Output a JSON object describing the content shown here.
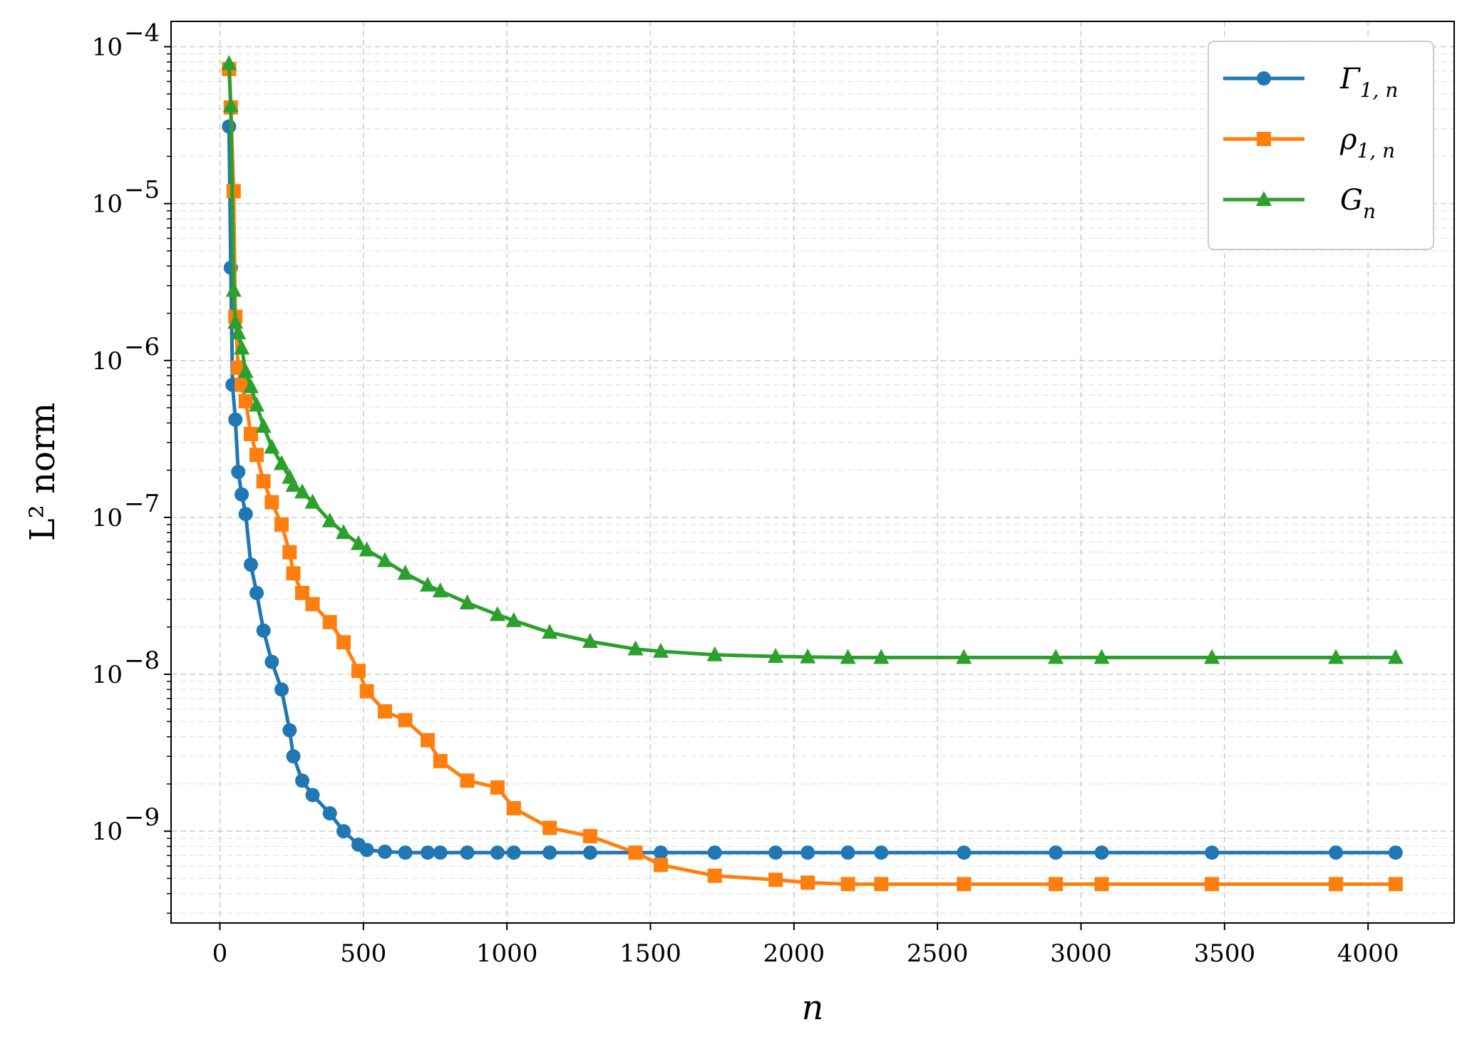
{
  "chart_data": {
    "type": "line",
    "xlabel": "n",
    "ylabel": "L² norm",
    "yscale": "log",
    "xlim": [
      -170,
      4300
    ],
    "ylim": [
      2.6e-10,
      0.000145
    ],
    "grid": true,
    "legend_position": "top-right",
    "x_ticks": [
      0,
      500,
      1000,
      1500,
      2000,
      2500,
      3000,
      3500,
      4000
    ],
    "x_tick_labels": [
      "0",
      "500",
      "1000",
      "1500",
      "2000",
      "2500",
      "3000",
      "3500",
      "4000"
    ],
    "y_ticks": [
      {
        "value": 0.0001,
        "mantissa": "10",
        "exp": "−4"
      },
      {
        "value": 1e-05,
        "mantissa": "10",
        "exp": "−5"
      },
      {
        "value": 1e-06,
        "mantissa": "10",
        "exp": "−6"
      },
      {
        "value": 1e-07,
        "mantissa": "10",
        "exp": "−7"
      },
      {
        "value": 1e-08,
        "mantissa": "10",
        "exp": "−8"
      },
      {
        "value": 1e-09,
        "mantissa": "10",
        "exp": "−9"
      }
    ],
    "series": [
      {
        "name": "Γ1,n",
        "legend_main": "Γ",
        "legend_sub": "1, n",
        "color": "#1f77b4",
        "marker": "circle",
        "x": [
          32,
          38,
          44,
          54,
          64,
          76,
          90,
          108,
          128,
          152,
          181,
          215,
          243,
          256,
          287,
          323,
          383,
          431,
          483,
          512,
          575,
          646,
          724,
          768,
          862,
          967,
          1024,
          1149,
          1290,
          1448,
          1536,
          1724,
          1936,
          2048,
          2188,
          2304,
          2592,
          2912,
          3072,
          3456,
          3888,
          4096
        ],
        "y": [
          3.1e-05,
          3.9e-06,
          7e-07,
          4.2e-07,
          1.95e-07,
          1.4e-07,
          1.05e-07,
          5e-08,
          3.3e-08,
          1.9e-08,
          1.2e-08,
          8e-09,
          4.4e-09,
          3e-09,
          2.1e-09,
          1.7e-09,
          1.3e-09,
          1e-09,
          8.2e-10,
          7.6e-10,
          7.4e-10,
          7.3e-10,
          7.3e-10,
          7.3e-10,
          7.3e-10,
          7.3e-10,
          7.3e-10,
          7.3e-10,
          7.3e-10,
          7.3e-10,
          7.3e-10,
          7.3e-10,
          7.3e-10,
          7.3e-10,
          7.3e-10,
          7.3e-10,
          7.3e-10,
          7.3e-10,
          7.3e-10,
          7.3e-10,
          7.3e-10,
          7.3e-10
        ]
      },
      {
        "name": "ρ1,n",
        "legend_main": "ρ",
        "legend_sub": "1, n",
        "color": "#ff7f0e",
        "marker": "square",
        "x": [
          32,
          38,
          48,
          54,
          64,
          76,
          90,
          108,
          128,
          152,
          181,
          215,
          243,
          256,
          287,
          323,
          383,
          431,
          483,
          512,
          575,
          646,
          724,
          768,
          862,
          967,
          1024,
          1149,
          1290,
          1448,
          1536,
          1724,
          1936,
          2048,
          2188,
          2304,
          2592,
          2912,
          3072,
          3456,
          3888,
          4096
        ],
        "y": [
          7.2e-05,
          4.1e-05,
          1.2e-05,
          1.9e-06,
          9e-07,
          7e-07,
          5.5e-07,
          3.4e-07,
          2.5e-07,
          1.7e-07,
          1.25e-07,
          9e-08,
          6e-08,
          4.4e-08,
          3.3e-08,
          2.8e-08,
          2.15e-08,
          1.6e-08,
          1.05e-08,
          7.8e-09,
          5.8e-09,
          5.1e-09,
          3.8e-09,
          2.8e-09,
          2.1e-09,
          1.9e-09,
          1.4e-09,
          1.05e-09,
          9.3e-10,
          7.3e-10,
          6.1e-10,
          5.2e-10,
          4.9e-10,
          4.7e-10,
          4.6e-10,
          4.6e-10,
          4.6e-10,
          4.6e-10,
          4.6e-10,
          4.6e-10,
          4.6e-10,
          4.6e-10
        ]
      },
      {
        "name": "Gn",
        "legend_main": "G",
        "legend_sub": "n",
        "color": "#2ca02c",
        "marker": "triangle",
        "x": [
          32,
          38,
          48,
          54,
          64,
          76,
          90,
          108,
          128,
          152,
          181,
          215,
          243,
          256,
          287,
          323,
          383,
          431,
          483,
          512,
          575,
          646,
          724,
          768,
          862,
          967,
          1024,
          1149,
          1290,
          1448,
          1536,
          1724,
          1936,
          2048,
          2188,
          2304,
          2592,
          2912,
          3072,
          3456,
          3888,
          4096
        ],
        "y": [
          7.8e-05,
          4.2e-05,
          2.8e-06,
          1.75e-06,
          1.5e-06,
          1.2e-06,
          8.5e-07,
          6.8e-07,
          5.2e-07,
          3.8e-07,
          2.8e-07,
          2.2e-07,
          1.8e-07,
          1.6e-07,
          1.45e-07,
          1.25e-07,
          9.5e-08,
          8e-08,
          6.8e-08,
          6.2e-08,
          5.3e-08,
          4.4e-08,
          3.7e-08,
          3.4e-08,
          2.85e-08,
          2.4e-08,
          2.2e-08,
          1.85e-08,
          1.62e-08,
          1.45e-08,
          1.4e-08,
          1.33e-08,
          1.3e-08,
          1.29e-08,
          1.28e-08,
          1.28e-08,
          1.28e-08,
          1.28e-08,
          1.28e-08,
          1.28e-08,
          1.28e-08,
          1.28e-08
        ]
      }
    ]
  }
}
